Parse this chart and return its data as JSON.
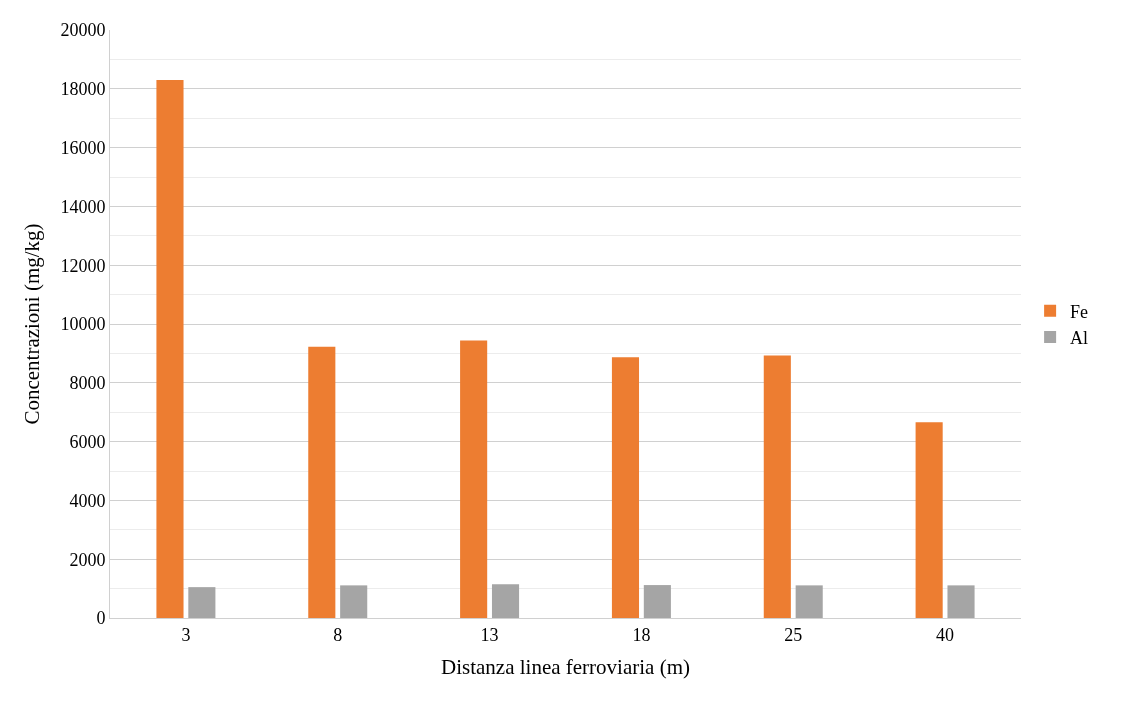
{
  "chart_data": {
    "type": "bar",
    "xlabel": "Distanza linea ferroviaria (m)",
    "ylabel": "Concentrazioni (mg/kg)",
    "categories": [
      "3",
      "8",
      "13",
      "18",
      "25",
      "40"
    ],
    "series": [
      {
        "name": "Fe",
        "color": "#ed7d31",
        "values": [
          18300,
          9230,
          9440,
          8870,
          8930,
          6660
        ]
      },
      {
        "name": "Al",
        "color": "#a5a5a5",
        "values": [
          1050,
          1110,
          1150,
          1120,
          1110,
          1110
        ]
      }
    ],
    "ylim": [
      0,
      20000
    ],
    "yticks": [
      0,
      2000,
      4000,
      6000,
      8000,
      10000,
      12000,
      14000,
      16000,
      18000,
      20000
    ],
    "grid": "y",
    "legend": "right"
  }
}
